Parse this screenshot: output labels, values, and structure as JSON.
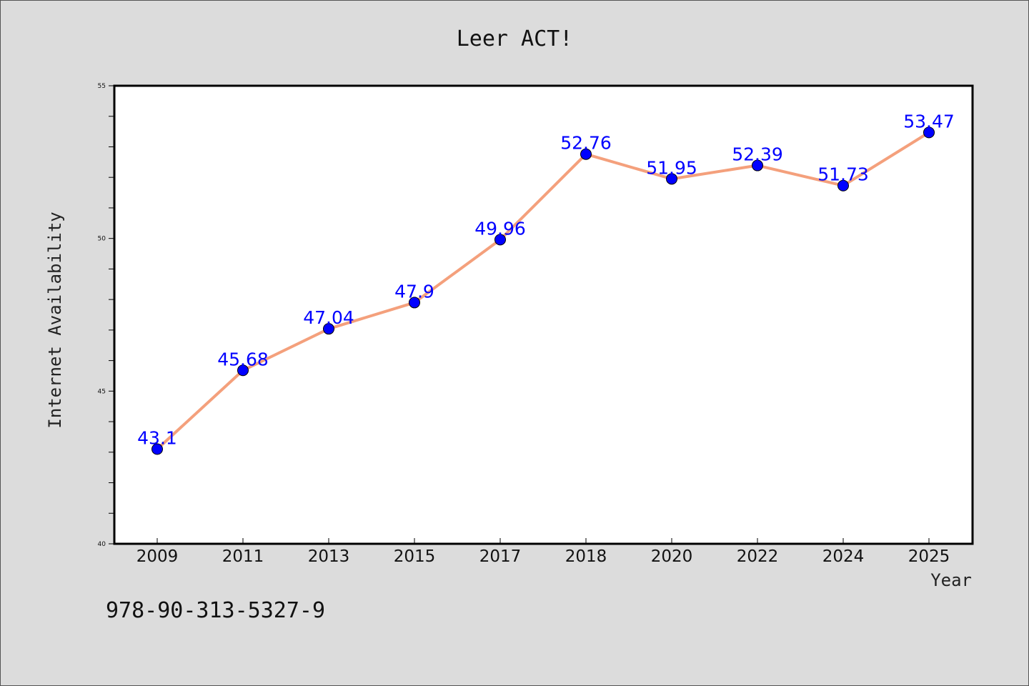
{
  "chart_data": {
    "type": "line",
    "title": "Leer ACT!",
    "xlabel": "Year",
    "ylabel": "Internet Availability",
    "categories": [
      "2009",
      "2011",
      "2013",
      "2015",
      "2017",
      "2018",
      "2020",
      "2022",
      "2024",
      "2025"
    ],
    "series": [
      {
        "values": [
          43.1,
          45.68,
          47.04,
          47.9,
          49.96,
          52.76,
          51.95,
          52.39,
          51.73,
          53.47
        ],
        "labels": [
          "43.1",
          "45.68",
          "47.04",
          "47.9",
          "49.96",
          "52.76",
          "51.95",
          "52.39",
          "51.73",
          "53.47"
        ],
        "line_color": "#f4a07c",
        "marker_color": "#0000ff"
      }
    ],
    "ylim": [
      40,
      55
    ],
    "yticks": [
      40,
      45,
      50,
      55
    ],
    "grid": false,
    "legend": "none"
  },
  "footer": {
    "isbn": "978-90-313-5327-9"
  },
  "colors": {
    "background": "#dcdcdc",
    "plot_background": "#ffffff"
  }
}
